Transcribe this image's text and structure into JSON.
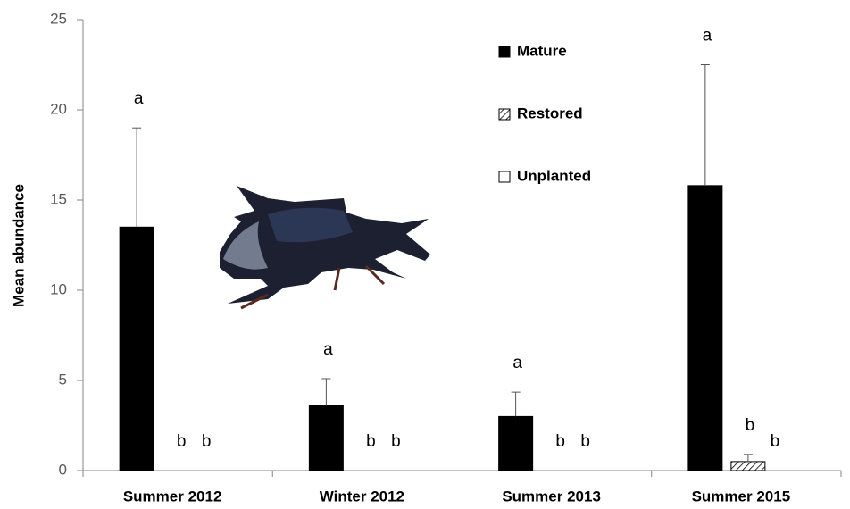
{
  "chart_data": {
    "type": "bar",
    "y_label": "Mean abundance",
    "categories": [
      "Summer 2012",
      "Winter 2012",
      "Summer 2013",
      "Summer 2015"
    ],
    "series": [
      {
        "name": "Mature",
        "color": "#000000",
        "values": [
          13.5,
          3.6,
          3.0,
          15.8
        ],
        "errors": [
          5.5,
          1.5,
          1.35,
          6.7
        ],
        "letters": [
          "a",
          "a",
          "a",
          "a"
        ]
      },
      {
        "name": "Restored",
        "color": "#ffffff",
        "fill_pattern": "diagonal-hatch",
        "values": [
          0,
          0,
          0,
          0.5
        ],
        "errors": [
          null,
          null,
          null,
          0.4
        ],
        "letters": [
          "b",
          "b",
          "b",
          "b"
        ]
      },
      {
        "name": "Unplanted",
        "color": "#ffffff",
        "values": [
          0,
          0,
          0,
          0
        ],
        "errors": [
          null,
          null,
          null,
          null
        ],
        "letters": [
          "b",
          "b",
          "b",
          "b"
        ]
      }
    ],
    "ylim": [
      0,
      25
    ],
    "yticks": [
      0,
      5,
      10,
      15,
      20,
      25
    ],
    "grid": false,
    "legend_position": "upper right"
  }
}
